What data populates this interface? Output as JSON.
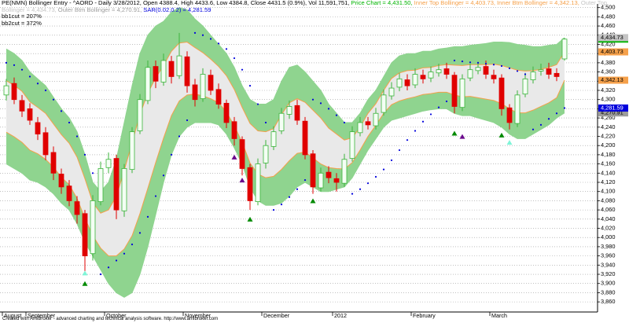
{
  "chart_data": {
    "type": "candlestick",
    "title": "PE(NMN) Bollinger Entry - ^AORD - Daily 3/28/2012, Open 4388.4, High 4433.6, Low 4384.8, Close 4431.5 (0.9%), Vol 11,591,751,",
    "notes": [
      "bb1cut = 207%",
      "bb2cut = 372%"
    ],
    "credit": "Created with AmiBroker - advanced charting and technical analysis software. http://www.amibroker.com",
    "ylim": [
      3838,
      4508
    ],
    "yticks": [
      {
        "value": 3860,
        "label": "3,860"
      },
      {
        "value": 3880,
        "label": "3,880"
      },
      {
        "value": 3900,
        "label": "3,900"
      },
      {
        "value": 3920,
        "label": "3,920"
      },
      {
        "value": 3940,
        "label": "3,940"
      },
      {
        "value": 3960,
        "label": "3,960"
      },
      {
        "value": 3980,
        "label": "3,980"
      },
      {
        "value": 4000,
        "label": "4,000"
      },
      {
        "value": 4020,
        "label": "4,020"
      },
      {
        "value": 4040,
        "label": "4,040"
      },
      {
        "value": 4060,
        "label": "4,060"
      },
      {
        "value": 4080,
        "label": "4,080"
      },
      {
        "value": 4100,
        "label": "4,100"
      },
      {
        "value": 4120,
        "label": "4,120"
      },
      {
        "value": 4140,
        "label": "4,140"
      },
      {
        "value": 4160,
        "label": "4,160"
      },
      {
        "value": 4180,
        "label": "4,180"
      },
      {
        "value": 4200,
        "label": "4,200"
      },
      {
        "value": 4220,
        "label": "4,220"
      },
      {
        "value": 4240,
        "label": "4,240"
      },
      {
        "value": 4260,
        "label": "4,260"
      },
      {
        "value": 4280,
        "label": "4,280"
      },
      {
        "value": 4300,
        "label": "4,300"
      },
      {
        "value": 4320,
        "label": "4,320"
      },
      {
        "value": 4340,
        "label": "4,340"
      },
      {
        "value": 4360,
        "label": "4,360"
      },
      {
        "value": 4380,
        "label": "4,380"
      },
      {
        "value": 4400,
        "label": "4,400"
      },
      {
        "value": 4420,
        "label": "4,420"
      },
      {
        "value": 4440,
        "label": "4,440"
      },
      {
        "value": 4460,
        "label": "4,460"
      },
      {
        "value": 4480,
        "label": "4,480"
      },
      {
        "value": 4500,
        "label": "4,500"
      }
    ],
    "grid": true,
    "outer_band_fill": "#8fd48f",
    "inner_band_fill": "#e9e9e9",
    "categories": [
      "August",
      null,
      null,
      "September",
      null,
      null,
      null,
      null,
      null,
      null,
      null,
      null,
      null,
      "October",
      null,
      null,
      null,
      null,
      null,
      null,
      null,
      null,
      null,
      "November",
      null,
      null,
      null,
      null,
      null,
      null,
      null,
      null,
      null,
      "December",
      null,
      null,
      null,
      null,
      null,
      null,
      null,
      null,
      "2012",
      null,
      null,
      null,
      null,
      null,
      null,
      null,
      null,
      null,
      "February",
      null,
      null,
      null,
      null,
      null,
      null,
      null,
      null,
      null,
      "March",
      null,
      null,
      null,
      null,
      null,
      null,
      null,
      null,
      null
    ],
    "series": [
      {
        "name": "Price Chart",
        "style": "candles",
        "color": "#00b400",
        "up_color": "#3cb43c",
        "down_color": "#e00000",
        "legend_label": "= 4,431.50,",
        "last_label": "4,431.5",
        "open": [
          4310,
          4335,
          4298,
          4280,
          4250,
          4228,
          4185,
          4138,
          4112,
          4078,
          4052,
          3965,
          4078,
          4152,
          4172,
          4058,
          4148,
          4232,
          4298,
          4372,
          4338,
          4383,
          4352,
          4393,
          4332,
          4302,
          4353,
          4322,
          4292,
          4252,
          4213,
          4152,
          4078,
          4162,
          4198,
          4232,
          4268,
          4287,
          4253,
          4182,
          4108,
          4142,
          4128,
          4118,
          4172,
          4228,
          4252,
          4243,
          4272,
          4308,
          4327,
          4343,
          4332,
          4353,
          4347,
          4358,
          4367,
          4353,
          4283,
          4347,
          4363,
          4372,
          4353,
          4347,
          4282,
          4248,
          4312,
          4343,
          4362,
          4367,
          4357,
          4388.4
        ],
        "high": [
          4345,
          4348,
          4310,
          4292,
          4262,
          4240,
          4198,
          4150,
          4125,
          4090,
          4060,
          4092,
          4165,
          4185,
          4180,
          4160,
          4240,
          4312,
          4385,
          4385,
          4400,
          4395,
          4445,
          4405,
          4345,
          4368,
          4365,
          4335,
          4300,
          4262,
          4220,
          4160,
          4172,
          4212,
          4242,
          4282,
          4298,
          4300,
          4262,
          4190,
          4152,
          4155,
          4140,
          4182,
          4242,
          4262,
          4262,
          4282,
          4322,
          4338,
          4358,
          4355,
          4368,
          4365,
          4372,
          4378,
          4380,
          4360,
          4355,
          4378,
          4382,
          4385,
          4365,
          4355,
          4290,
          4320,
          4358,
          4372,
          4378,
          4380,
          4368,
          4433.6
        ],
        "low": [
          4298,
          4290,
          4262,
          4245,
          4212,
          4168,
          4125,
          4095,
          4068,
          4030,
          3920,
          3950,
          4070,
          4140,
          4040,
          4045,
          4140,
          4225,
          4290,
          4325,
          4330,
          4335,
          4345,
          4315,
          4285,
          4295,
          4310,
          4280,
          4238,
          4200,
          4135,
          4060,
          4070,
          4150,
          4190,
          4225,
          4258,
          4245,
          4170,
          4095,
          4100,
          4118,
          4100,
          4110,
          4165,
          4220,
          4235,
          4235,
          4265,
          4300,
          4318,
          4320,
          4325,
          4335,
          4338,
          4350,
          4345,
          4270,
          4275,
          4340,
          4355,
          4345,
          4335,
          4265,
          4235,
          4240,
          4305,
          4335,
          4352,
          4345,
          4340,
          4384.8
        ],
        "close": [
          4330,
          4300,
          4275,
          4255,
          4225,
          4180,
          4140,
          4110,
          4080,
          4050,
          3960,
          4080,
          4150,
          4170,
          4060,
          4150,
          4230,
          4300,
          4370,
          4340,
          4385,
          4350,
          4395,
          4330,
          4300,
          4355,
          4320,
          4290,
          4250,
          4215,
          4150,
          4080,
          4160,
          4200,
          4230,
          4270,
          4285,
          4255,
          4180,
          4110,
          4140,
          4130,
          4120,
          4170,
          4230,
          4250,
          4245,
          4270,
          4310,
          4325,
          4345,
          4330,
          4355,
          4345,
          4360,
          4365,
          4355,
          4285,
          4345,
          4365,
          4370,
          4355,
          4345,
          4280,
          4250,
          4310,
          4345,
          4360,
          4365,
          4355,
          4350,
          4431.5
        ]
      },
      {
        "name": "Inner Top Bollinger",
        "style": "line",
        "color": "#f5a04a",
        "legend_label": "= 4,403.73,",
        "last_label": "4,403.73",
        "values": [
          4341,
          4331,
          4318,
          4295,
          4283,
          4270,
          4247,
          4224,
          4205,
          4175,
          4128,
          4076,
          4053,
          4060,
          4090,
          4146,
          4206,
          4268,
          4314,
          4347,
          4374,
          4405,
          4423,
          4425,
          4413,
          4402,
          4388,
          4372,
          4352,
          4322,
          4283,
          4248,
          4232,
          4230,
          4237,
          4267,
          4293,
          4302,
          4294,
          4277,
          4260,
          4238,
          4225,
          4212,
          4217,
          4240,
          4270,
          4291,
          4320,
          4346,
          4358,
          4363,
          4364,
          4369,
          4370,
          4374,
          4376,
          4375,
          4374,
          4376,
          4376,
          4376,
          4377,
          4374,
          4369,
          4364,
          4362,
          4363,
          4366,
          4370,
          4376,
          4403.73
        ]
      },
      {
        "name": "Inner Btm Bollinger",
        "style": "line",
        "color": "#f5a04a",
        "legend_label": "= 4,342.13,",
        "last_label": "4,342.13",
        "values": [
          4229,
          4219,
          4207,
          4190,
          4182,
          4170,
          4153,
          4131,
          4115,
          4085,
          4042,
          4004,
          3977,
          3960,
          3960,
          3975,
          4004,
          4052,
          4107,
          4163,
          4216,
          4265,
          4297,
          4310,
          4312,
          4308,
          4302,
          4293,
          4273,
          4243,
          4207,
          4162,
          4138,
          4130,
          4133,
          4148,
          4167,
          4183,
          4186,
          4173,
          4160,
          4152,
          4150,
          4149,
          4163,
          4190,
          4220,
          4244,
          4270,
          4289,
          4297,
          4302,
          4306,
          4311,
          4313,
          4316,
          4316,
          4310,
          4306,
          4307,
          4304,
          4301,
          4298,
          4291,
          4280,
          4271,
          4271,
          4277,
          4285,
          4293,
          4304,
          4342.13
        ]
      },
      {
        "name": "Outer Top Bollinger",
        "style": "edge",
        "color": "#c4c4c4",
        "legend_label": "= 4,434.73,",
        "last_label": "4,434.73",
        "values": [
          4410,
          4400,
          4385,
          4360,
          4345,
          4330,
          4305,
          4280,
          4260,
          4230,
          4180,
          4120,
          4100,
          4120,
          4170,
          4250,
          4330,
          4400,
          4440,
          4460,
          4470,
          4490,
          4500,
          4495,
          4475,
          4460,
          4440,
          4420,
          4400,
          4370,
          4330,
          4300,
          4290,
          4290,
          4300,
          4340,
          4370,
          4375,
          4360,
          4340,
          4320,
          4290,
          4270,
          4250,
          4250,
          4270,
          4300,
          4320,
          4350,
          4380,
          4395,
          4400,
          4400,
          4405,
          4405,
          4410,
          4412,
          4415,
          4415,
          4418,
          4420,
          4422,
          4425,
          4425,
          4424,
          4420,
          4418,
          4415,
          4415,
          4418,
          4420,
          4434.73
        ]
      },
      {
        "name": "Outer Btm Bollinger",
        "style": "edge",
        "color": "#9c9c9c",
        "legend_label": "= 4,270.91,",
        "last_label": "4,270.91",
        "values": [
          4160,
          4150,
          4140,
          4125,
          4120,
          4110,
          4095,
          4075,
          4060,
          4030,
          3990,
          3960,
          3930,
          3900,
          3880,
          3870,
          3880,
          3920,
          3980,
          4050,
          4120,
          4180,
          4220,
          4240,
          4250,
          4250,
          4250,
          4245,
          4225,
          4195,
          4160,
          4110,
          4080,
          4070,
          4070,
          4075,
          4090,
          4110,
          4120,
          4110,
          4100,
          4100,
          4105,
          4110,
          4130,
          4160,
          4190,
          4215,
          4240,
          4255,
          4260,
          4265,
          4270,
          4275,
          4278,
          4280,
          4280,
          4270,
          4265,
          4265,
          4260,
          4255,
          4250,
          4240,
          4225,
          4215,
          4215,
          4225,
          4235,
          4245,
          4260,
          4270.91
        ]
      },
      {
        "name": "SAR(0.02,0.2)",
        "style": "dots",
        "color": "#0000dc",
        "legend_label": "= 4,281.59",
        "last_label": "4,281.59",
        "values": [
          4380,
          4375,
          4365,
          4350,
          4335,
          4320,
          4300,
          4275,
          4250,
          4220,
          4180,
          4140,
          3920,
          3935,
          3950,
          3965,
          3985,
          4010,
          4045,
          4090,
          4135,
          4180,
          4220,
          4255,
          4445,
          4440,
          4432,
          4422,
          4410,
          4390,
          4365,
          4330,
          4290,
          4250,
          4060,
          4072,
          4088,
          4105,
          4125,
          4300,
          4292,
          4280,
          4266,
          4250,
          4095,
          4105,
          4118,
          4132,
          4148,
          4168,
          4190,
          4212,
          4232,
          4252,
          4268,
          4283,
          4296,
          4385,
          4383,
          4381,
          4380,
          4378,
          4376,
          4373,
          4368,
          4362,
          4355,
          4235,
          4245,
          4258,
          4270,
          4281.59
        ]
      }
    ],
    "signals": [
      {
        "color": "#008a00",
        "values": [
          null,
          null,
          null,
          null,
          null,
          null,
          null,
          null,
          null,
          null,
          3905,
          null,
          null,
          null,
          null,
          null,
          null,
          null,
          null,
          null,
          null,
          null,
          null,
          null,
          null,
          null,
          null,
          null,
          null,
          null,
          null,
          4045,
          null,
          null,
          null,
          null,
          null,
          null,
          null,
          4085,
          null,
          null,
          null,
          null,
          null,
          null,
          null,
          null,
          null,
          null,
          null,
          null,
          null,
          null,
          null,
          null,
          null,
          4232,
          null,
          null,
          null,
          null,
          null,
          4228,
          null,
          null,
          null,
          null,
          null,
          null,
          null,
          null
        ]
      },
      {
        "color": "#6a0a8c",
        "values": [
          null,
          null,
          null,
          null,
          null,
          null,
          null,
          null,
          null,
          null,
          null,
          null,
          null,
          null,
          null,
          null,
          null,
          null,
          null,
          null,
          null,
          null,
          null,
          null,
          null,
          null,
          null,
          null,
          null,
          4180,
          4130,
          null,
          null,
          null,
          null,
          null,
          null,
          null,
          null,
          null,
          null,
          null,
          null,
          null,
          null,
          null,
          null,
          null,
          null,
          null,
          null,
          null,
          null,
          null,
          null,
          null,
          null,
          null,
          4225,
          null,
          null,
          null,
          null,
          null,
          null,
          null,
          null,
          null,
          null,
          null,
          null,
          null
        ]
      },
      {
        "color": "#7ff5d8",
        "values": [
          null,
          null,
          null,
          null,
          null,
          null,
          null,
          null,
          null,
          null,
          3928,
          null,
          null,
          null,
          null,
          null,
          null,
          null,
          null,
          null,
          null,
          null,
          null,
          null,
          null,
          null,
          null,
          null,
          null,
          null,
          null,
          null,
          null,
          null,
          null,
          null,
          null,
          null,
          null,
          null,
          null,
          null,
          null,
          null,
          null,
          null,
          null,
          null,
          null,
          null,
          null,
          null,
          null,
          null,
          null,
          null,
          null,
          null,
          null,
          null,
          null,
          null,
          null,
          null,
          4212,
          null,
          null,
          null,
          null,
          null,
          null,
          null
        ]
      }
    ]
  }
}
